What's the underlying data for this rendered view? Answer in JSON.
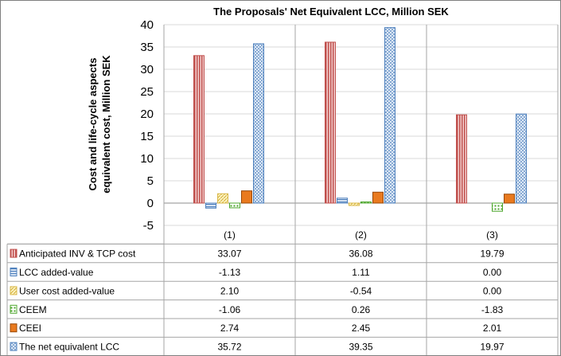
{
  "chart_data": {
    "type": "bar",
    "title": "The Proposals' Net Equivalent LCC, Million SEK",
    "ylabel_line1": "Cost and life-cycle aspects",
    "ylabel_line2": "equivalent cost, Million SEK",
    "ylim": [
      -5,
      40
    ],
    "yticks": [
      -5,
      0,
      5,
      10,
      15,
      20,
      25,
      30,
      35,
      40
    ],
    "categories": [
      "(1)",
      "(2)",
      "(3)"
    ],
    "grid": true,
    "legend": "data-table",
    "series": [
      {
        "name": "Anticipated INV & TCP cost",
        "values": [
          33.07,
          36.08,
          19.79
        ],
        "labels": [
          "33.07",
          "36.08",
          "19.79"
        ],
        "fill": "#e8a3a3",
        "stroke": "#c0504d",
        "pattern": "vstripes"
      },
      {
        "name": "LCC added-value",
        "values": [
          -1.13,
          1.11,
          0.0
        ],
        "labels": [
          "-1.13",
          "1.11",
          "0.00"
        ],
        "fill": "#dce6f2",
        "stroke": "#4f81bd",
        "pattern": "hstripes"
      },
      {
        "name": "User cost added-value",
        "values": [
          2.1,
          -0.54,
          0.0
        ],
        "labels": [
          "2.10",
          "-0.54",
          "0.00"
        ],
        "fill": "#fff2b3",
        "stroke": "#d9b84a",
        "pattern": "diag"
      },
      {
        "name": "CEEM",
        "values": [
          -1.06,
          0.26,
          -1.83
        ],
        "labels": [
          "-1.06",
          "0.26",
          "-1.83"
        ],
        "fill": "#ffffff",
        "stroke": "#4ea72e",
        "pattern": "dots"
      },
      {
        "name": "CEEI",
        "values": [
          2.74,
          2.45,
          2.01
        ],
        "labels": [
          "2.74",
          "2.45",
          "2.01"
        ],
        "fill": "#e97a1f",
        "stroke": "#984807",
        "pattern": "solid"
      },
      {
        "name": "The net equivalent LCC",
        "values": [
          35.72,
          39.35,
          19.97
        ],
        "labels": [
          "35.72",
          "39.35",
          "19.97"
        ],
        "fill": "#dbe7f5",
        "stroke": "#4f81bd",
        "pattern": "cross"
      }
    ]
  }
}
